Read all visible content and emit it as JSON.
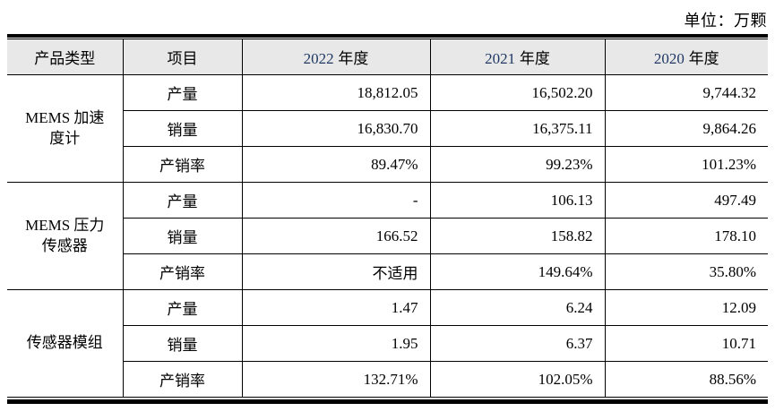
{
  "page": {
    "unit_label": "单位：万颗"
  },
  "colors": {
    "year_accent": "#1f3864",
    "header_bg": "#e8e8e8",
    "border": "#000000"
  },
  "table": {
    "columns": [
      {
        "label": "产品类型"
      },
      {
        "label": "项目"
      },
      {
        "year": "2022",
        "suffix": "年度"
      },
      {
        "year": "2021",
        "suffix": "年度"
      },
      {
        "year": "2020",
        "suffix": "年度"
      }
    ],
    "groups": [
      {
        "category": "MEMS 加速\n度计",
        "rows": [
          {
            "item": "产量",
            "v2022": "18,812.05",
            "v2021": "16,502.20",
            "v2020": "9,744.32"
          },
          {
            "item": "销量",
            "v2022": "16,830.70",
            "v2021": "16,375.11",
            "v2020": "9,864.26"
          },
          {
            "item": "产销率",
            "v2022": "89.47%",
            "v2021": "99.23%",
            "v2020": "101.23%"
          }
        ]
      },
      {
        "category": "MEMS 压力\n传感器",
        "rows": [
          {
            "item": "产量",
            "v2022": "-",
            "v2021": "106.13",
            "v2020": "497.49"
          },
          {
            "item": "销量",
            "v2022": "166.52",
            "v2021": "158.82",
            "v2020": "178.10"
          },
          {
            "item": "产销率",
            "v2022": "不适用",
            "v2021": "149.64%",
            "v2020": "35.80%"
          }
        ]
      },
      {
        "category": "传感器模组",
        "rows": [
          {
            "item": "产量",
            "v2022": "1.47",
            "v2021": "6.24",
            "v2020": "12.09"
          },
          {
            "item": "销量",
            "v2022": "1.95",
            "v2021": "6.37",
            "v2020": "10.71"
          },
          {
            "item": "产销率",
            "v2022": "132.71%",
            "v2021": "102.05%",
            "v2020": "88.56%"
          }
        ]
      }
    ]
  }
}
